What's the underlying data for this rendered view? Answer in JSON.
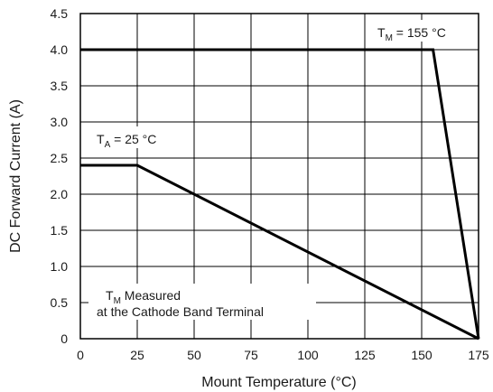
{
  "chart_data": {
    "type": "line",
    "xlabel": "Mount Temperature (°C)",
    "ylabel": "DC Forward Current (A)",
    "xlim": [
      0,
      175
    ],
    "ylim": [
      0,
      4.5
    ],
    "xticks": [
      "0",
      "25",
      "50",
      "75",
      "100",
      "125",
      "150",
      "175"
    ],
    "yticks": [
      "0",
      "0.5",
      "1.0",
      "1.5",
      "2.0",
      "2.5",
      "3.0",
      "3.5",
      "4.0",
      "4.5"
    ],
    "grid": true,
    "series": [
      {
        "x": [
          0,
          155,
          175
        ],
        "y": [
          4.0,
          4.0,
          0
        ]
      },
      {
        "x": [
          0,
          25,
          175
        ],
        "y": [
          2.4,
          2.4,
          0
        ]
      }
    ],
    "annotations": [
      {
        "main": "T",
        "sub": "M",
        "rest": " = 155 °C"
      },
      {
        "main": "T",
        "sub": "A",
        "rest": " = 25 °C"
      },
      {
        "main": "T",
        "sub": "M",
        "rest": " Measured",
        "line2": "at the Cathode Band Terminal"
      }
    ],
    "colors": {
      "line": "#000000",
      "grid": "#000000",
      "text": "#1a1a1a"
    }
  }
}
